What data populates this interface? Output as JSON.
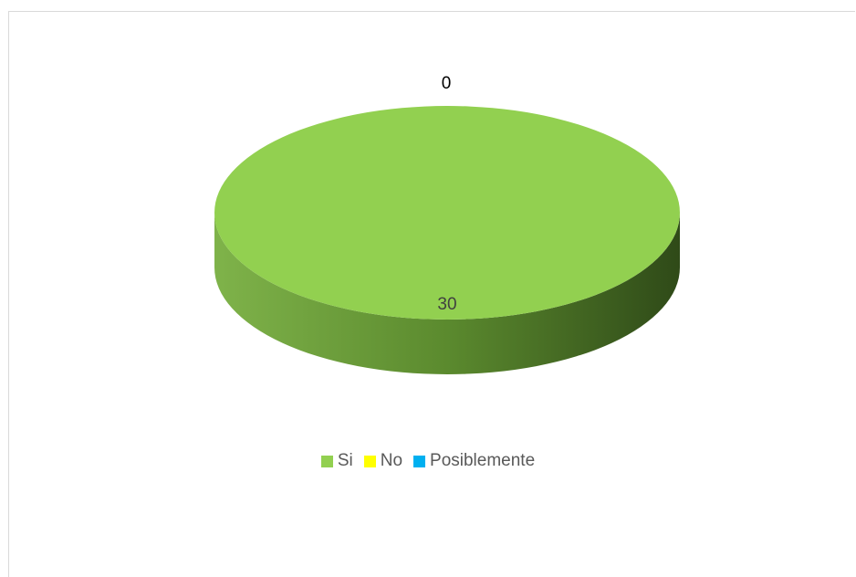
{
  "chart_data": {
    "type": "pie",
    "style": "3d",
    "categories": [
      "Si",
      "No",
      "Posiblemente"
    ],
    "values": [
      30,
      0,
      0
    ],
    "colors": [
      "#92d050",
      "#ffff00",
      "#00b0f0"
    ],
    "data_labels": [
      "30",
      "0",
      ""
    ],
    "legend_position": "bottom"
  }
}
